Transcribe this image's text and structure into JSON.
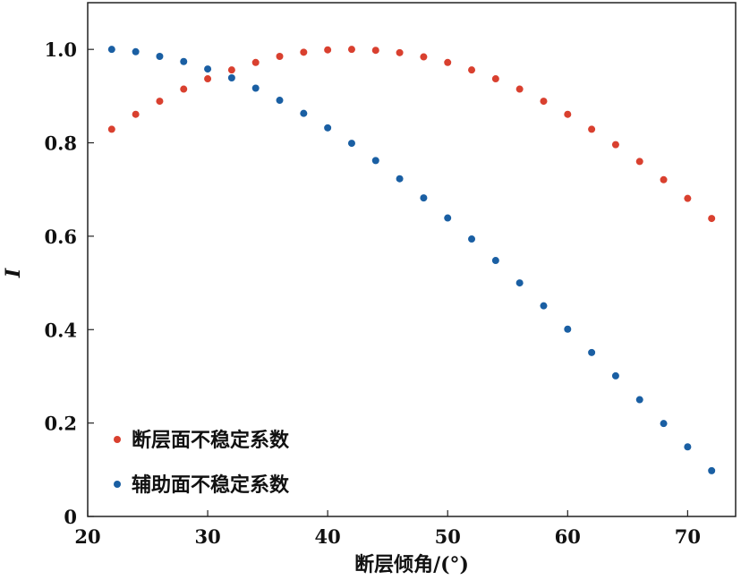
{
  "chart_data": {
    "type": "scatter",
    "xlabel": "断层倾角/(°)",
    "ylabel": "I",
    "xlim": [
      20,
      74
    ],
    "ylim": [
      0,
      1.1
    ],
    "xticks": [
      20,
      30,
      40,
      50,
      60,
      70
    ],
    "yticks": [
      0,
      0.2,
      0.4,
      0.6,
      0.8,
      1.0
    ],
    "ytick_labels": [
      "0",
      "0.2",
      "0.4",
      "0.6",
      "0.8",
      "1.0"
    ],
    "grid": false,
    "legend_position": "bottom-left",
    "x": [
      22,
      24,
      26,
      28,
      30,
      32,
      34,
      36,
      38,
      40,
      42,
      44,
      46,
      48,
      50,
      52,
      54,
      56,
      58,
      60,
      62,
      64,
      66,
      68,
      70,
      72
    ],
    "series": [
      {
        "name": "断层面不稳定系数",
        "color": "#d9402f",
        "values": [
          0.829,
          0.861,
          0.889,
          0.915,
          0.937,
          0.956,
          0.972,
          0.985,
          0.994,
          0.999,
          1.0,
          0.998,
          0.993,
          0.984,
          0.972,
          0.956,
          0.937,
          0.915,
          0.889,
          0.861,
          0.829,
          0.796,
          0.76,
          0.721,
          0.681,
          0.638
        ]
      },
      {
        "name": "辅助面不稳定系数",
        "color": "#1a5fa3",
        "values": [
          1.0,
          0.995,
          0.985,
          0.974,
          0.958,
          0.939,
          0.917,
          0.891,
          0.863,
          0.832,
          0.799,
          0.762,
          0.723,
          0.682,
          0.639,
          0.594,
          0.548,
          0.5,
          0.451,
          0.401,
          0.351,
          0.301,
          0.25,
          0.199,
          0.149,
          0.098
        ]
      }
    ]
  }
}
